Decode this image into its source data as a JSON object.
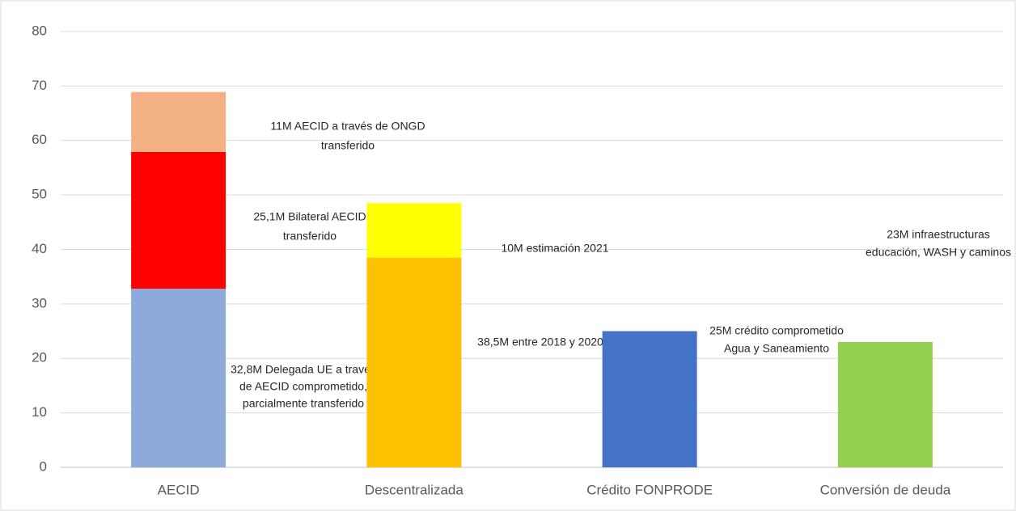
{
  "chart_data": {
    "type": "stacked_bar",
    "categories": [
      "AECID",
      "Descentralizada",
      "Crédito FONPRODE",
      "Conversión de deuda"
    ],
    "series": [
      {
        "color": "#8eaadb",
        "values": [
          32.8,
          null,
          null,
          null
        ],
        "label_lines": [
          "32,8M Delegada UE a través",
          "de AECID comprometido,",
          "parcialmente transferido"
        ]
      },
      {
        "color": "#ff0000",
        "values": [
          25.1,
          null,
          null,
          null
        ],
        "label_lines": [
          "25,1M Bilateral AECID",
          "transferido"
        ]
      },
      {
        "color": "#f4b183",
        "values": [
          11,
          null,
          null,
          null
        ],
        "label_lines": [
          "11M AECID a través de ONGD",
          "transferido"
        ]
      },
      {
        "color": "#ffc000",
        "values": [
          null,
          38.5,
          null,
          null
        ],
        "label_lines": [
          "38,5M entre 2018 y 2020"
        ]
      },
      {
        "color": "#ffff00",
        "values": [
          null,
          10,
          null,
          null
        ],
        "label_lines": [
          "10M estimación 2021"
        ]
      },
      {
        "color": "#4472c4",
        "values": [
          null,
          null,
          25,
          null
        ],
        "label_lines": [
          "25M crédito comprometido",
          "Agua y Saneamiento"
        ]
      },
      {
        "color": "#92d050",
        "values": [
          null,
          null,
          null,
          23
        ],
        "label_lines": [
          "23M infraestructuras",
          "educación, WASH y caminos"
        ]
      }
    ],
    "ylim": [
      0,
      80
    ],
    "yticks": [
      0,
      10,
      20,
      30,
      40,
      50,
      60,
      70,
      80
    ],
    "grid": true
  }
}
